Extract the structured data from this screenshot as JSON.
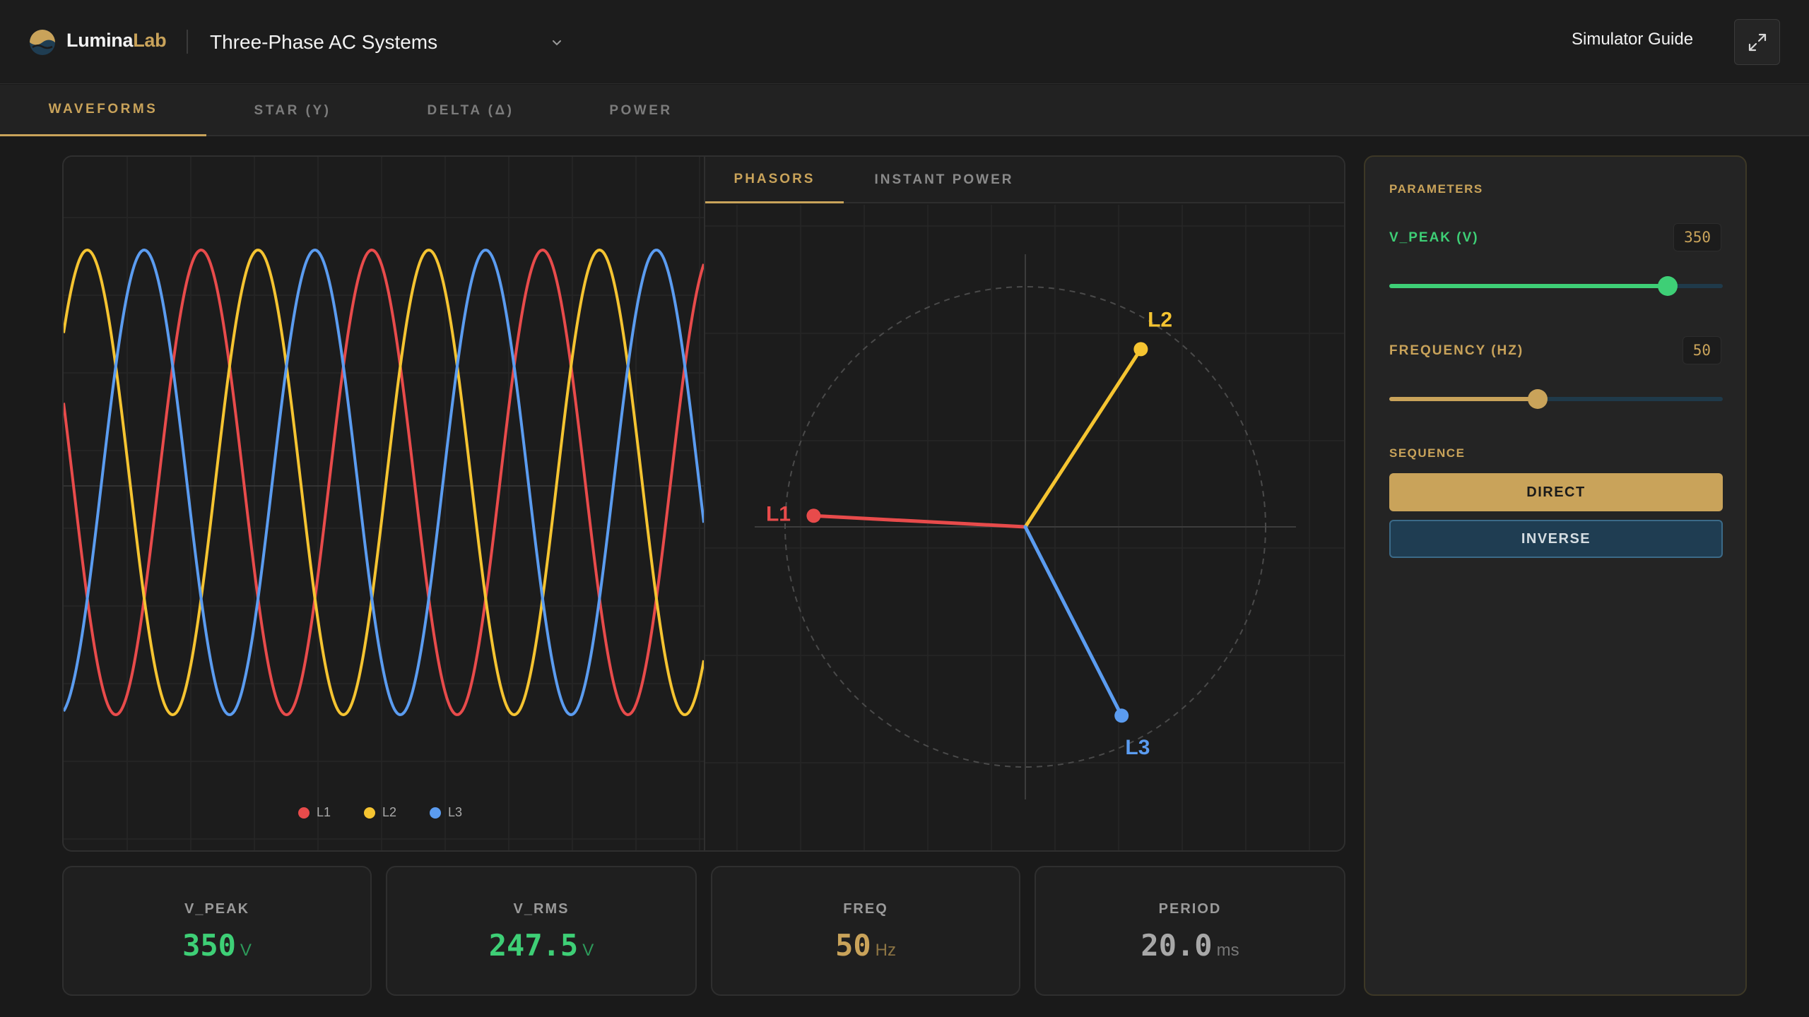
{
  "header": {
    "brand_primary": "Lumina",
    "brand_secondary": "Lab",
    "module_title": "Three-Phase AC Systems",
    "guide_label": "Simulator Guide",
    "fullscreen_icon": "expand-icon",
    "chevron_icon": "chevron-down-icon"
  },
  "tabs": [
    {
      "label": "WAVEFORMS",
      "active": true
    },
    {
      "label": "STAR (Y)",
      "active": false
    },
    {
      "label": "DELTA (Δ)",
      "active": false
    },
    {
      "label": "POWER",
      "active": false
    }
  ],
  "subtabs": [
    {
      "label": "PHASORS",
      "active": true
    },
    {
      "label": "INSTANT POWER",
      "active": false
    }
  ],
  "colors": {
    "accent": "#c9a35a",
    "l1": "#e84b4b",
    "l2": "#f5c431",
    "l3": "#5b9cf0",
    "green": "#3ecf76",
    "grid": "#2a2a2a"
  },
  "chart_data": [
    {
      "type": "line",
      "x_cycles": [
        0,
        3.75
      ],
      "ylim": [
        -1,
        1
      ],
      "grid": true,
      "legend_position": "bottom-center",
      "series": [
        {
          "name": "L1",
          "phase_deg": 0,
          "color": "#e84b4b"
        },
        {
          "name": "L2",
          "phase_deg": -120,
          "color": "#f5c431"
        },
        {
          "name": "L3",
          "phase_deg": 120,
          "color": "#5b9cf0"
        }
      ]
    },
    {
      "type": "scatter",
      "subtype": "phasor",
      "grid": true,
      "phasors": [
        {
          "name": "L1",
          "angle_deg": 177,
          "color": "#e84b4b"
        },
        {
          "name": "L2",
          "angle_deg": 57,
          "color": "#f5c431"
        },
        {
          "name": "L3",
          "angle_deg": -63,
          "color": "#5b9cf0"
        }
      ]
    }
  ],
  "legend": [
    {
      "label": "L1",
      "color": "#e84b4b"
    },
    {
      "label": "L2",
      "color": "#f5c431"
    },
    {
      "label": "L3",
      "color": "#5b9cf0"
    }
  ],
  "stats": [
    {
      "label": "V_PEAK",
      "value": "350",
      "unit": "V",
      "color": "#3ecf76"
    },
    {
      "label": "V_RMS",
      "value": "247.5",
      "unit": "V",
      "color": "#3ecf76"
    },
    {
      "label": "FREQ",
      "value": "50",
      "unit": "Hz",
      "color": "#c9a35a"
    },
    {
      "label": "PERIOD",
      "value": "20.0",
      "unit": "ms",
      "color": "#a8a8a8"
    }
  ],
  "params": {
    "section_label": "PARAMETERS",
    "vpeak": {
      "label": "V_PEAK (V)",
      "value": "350",
      "level": 0.835
    },
    "frequency": {
      "label": "FREQUENCY (HZ)",
      "value": "50",
      "level": 0.445
    },
    "sequence_label": "SEQUENCE",
    "sequence_direct": "DIRECT",
    "sequence_inverse": "INVERSE"
  }
}
